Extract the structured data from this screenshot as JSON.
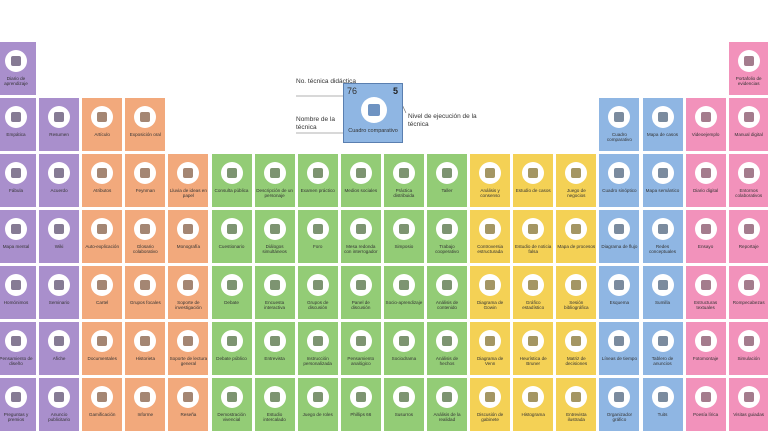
{
  "legend": {
    "number_label": "No. técnica didáctica",
    "name_label": "Nombre de la técnica",
    "level_label": "Nivel de ejecución de la técnica",
    "example_number": "76",
    "example_level": "5",
    "example_name": "Cuadro comparativo",
    "color": "#8fb6e3"
  },
  "column_colors": [
    "#a98fcc",
    "#a98fcc",
    "#f2a97c",
    "#f2a97c",
    "#f2a97c",
    "#93cc76",
    "#93cc76",
    "#93cc76",
    "#93cc76",
    "#93cc76",
    "#93cc76",
    "#f4d155",
    "#f4d155",
    "#f4d155",
    "#8fb6e3",
    "#8fb6e3",
    "#f292bb",
    "#f292bb"
  ],
  "rows": [
    [
      "Diario de aprendizaje",
      null,
      null,
      null,
      null,
      null,
      null,
      null,
      null,
      null,
      null,
      null,
      null,
      null,
      null,
      null,
      null,
      "Portafolio de evidencias"
    ],
    [
      "Empática",
      "Resumen",
      "Artículo",
      "Exposición oral",
      null,
      null,
      null,
      null,
      null,
      null,
      null,
      null,
      null,
      null,
      "Cuadro comparativo",
      "Mapa de casos",
      "Videoejemplo",
      "Manual digital"
    ],
    [
      "Fábula",
      "Acuerdo",
      "Atributos",
      "Feynman",
      "Lluvia de ideas en papel",
      "Consulta pública",
      "Descripción de un personaje",
      "Examen práctico",
      "Medios sociales",
      "Práctica distribuida",
      "Taller",
      "Análisis y consenso",
      "Estudio de casos",
      "Juego de negocios",
      "Cuadro sinóptico",
      "Mapa semántico",
      "Diario digital",
      "Entornos colaborativos"
    ],
    [
      "Mapa mental",
      "Wiki",
      "Auto-explicación",
      "Glosario colaborativo",
      "Monografía",
      "Cuestionario",
      "Diálogos simultáneos",
      "Foro",
      "Mesa redonda con interrogador",
      "Simposio",
      "Trabajo cooperativo",
      "Controversia estructurada",
      "Estudio de noticia falsa",
      "Mapa de procesos",
      "Diagrama de flujo",
      "Redes conceptuales",
      "Ensayo",
      "Reportaje"
    ],
    [
      "Homónimos",
      "Seminario",
      "Cartel",
      "Grupos focales",
      "Soporte de investigación",
      "Debate",
      "Encuesta interactiva",
      "Grupos de discusión",
      "Panel de discusión",
      "Socio-aprendizaje",
      "Análisis de contenido",
      "Diagrama de Gowin",
      "Gráfico estadístico",
      "Sesión bibliográfica",
      "Esquema",
      "Sumilla",
      "Estructuras textuales",
      "Rompecabezas"
    ],
    [
      "Pensamiento de diseño",
      "Afiche",
      "Documentales",
      "Historieta",
      "Soporte de lectura general",
      "Debate público",
      "Entrevista",
      "Instrucción personalizada",
      "Pensamiento analógico",
      "Sociodrama",
      "Análisis de hechos",
      "Diagrama de Venn",
      "Heurística de Bruner",
      "Matriz de decisiones",
      "Líneas de tiempo",
      "Tablero de anuncios",
      "Fotomontaje",
      "Simulación"
    ],
    [
      "Preguntas y premios",
      "Anuncio publicitario",
      "Gamificación",
      "Informe",
      "Reseña",
      "Demostración vivencial",
      "Estudio intercalado",
      "Juego de roles",
      "Phillips 66",
      "Susurros",
      "Análisis de la realidad",
      "Discusión de gabinete",
      "Histograma",
      "Entrevista ilustrada",
      "Organizador gráfico",
      "Tuits",
      "Poesía lírica",
      "Visitas guiadas"
    ]
  ]
}
